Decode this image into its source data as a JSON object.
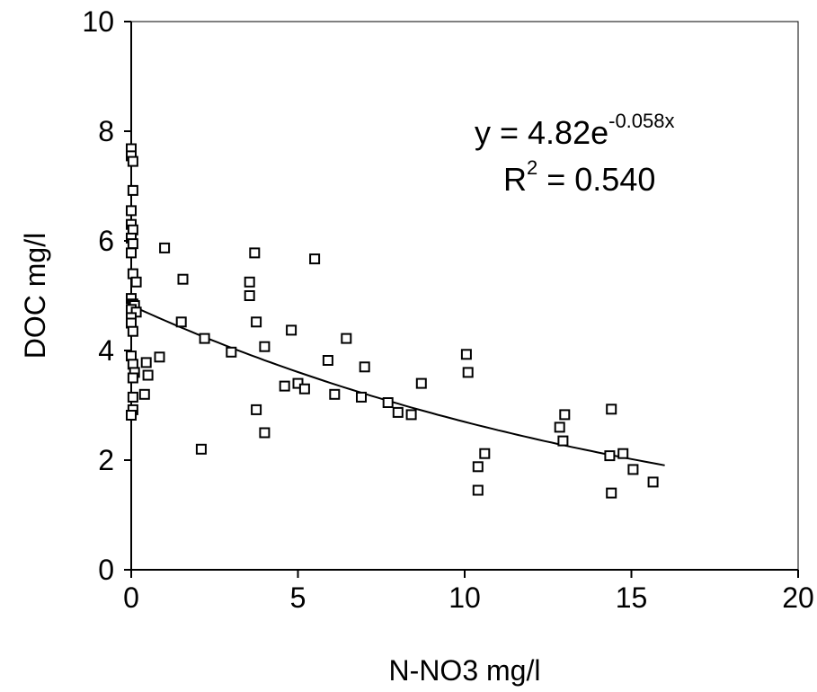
{
  "chart_data": {
    "type": "scatter",
    "xlabel": "N-NO3 mg/l",
    "ylabel": "DOC mg/l",
    "xlim": [
      0,
      20
    ],
    "ylim": [
      0,
      10
    ],
    "xticks": [
      "0",
      "5",
      "10",
      "15",
      "20"
    ],
    "yticks": [
      "0",
      "2",
      "4",
      "6",
      "8",
      "10"
    ],
    "grid": false,
    "legend": "none",
    "equation": {
      "prefix": "y = 4.82e",
      "exponent": "-0.058x",
      "r2_base": "R",
      "r2_sup": "2",
      "r2_value": " = 0.540"
    },
    "fit": {
      "a": 4.82,
      "b": -0.058,
      "x_start": 0,
      "x_end": 16
    },
    "points": [
      [
        0.0,
        7.68
      ],
      [
        0.0,
        7.55
      ],
      [
        0.05,
        7.45
      ],
      [
        0.05,
        6.92
      ],
      [
        0.0,
        6.55
      ],
      [
        0.0,
        6.3
      ],
      [
        0.05,
        6.2
      ],
      [
        0.0,
        6.05
      ],
      [
        0.05,
        5.95
      ],
      [
        0.0,
        5.78
      ],
      [
        0.05,
        5.4
      ],
      [
        0.15,
        5.25
      ],
      [
        0.0,
        4.95
      ],
      [
        0.05,
        4.85
      ],
      [
        0.1,
        4.82
      ],
      [
        0.0,
        4.75
      ],
      [
        0.15,
        4.7
      ],
      [
        0.0,
        4.6
      ],
      [
        0.0,
        4.5
      ],
      [
        0.05,
        4.35
      ],
      [
        0.0,
        3.9
      ],
      [
        0.05,
        3.75
      ],
      [
        0.1,
        3.6
      ],
      [
        0.05,
        3.5
      ],
      [
        0.05,
        3.15
      ],
      [
        0.05,
        2.92
      ],
      [
        0.0,
        2.82
      ],
      [
        0.45,
        3.78
      ],
      [
        0.5,
        3.55
      ],
      [
        0.4,
        3.2
      ],
      [
        0.85,
        3.88
      ],
      [
        1.0,
        5.87
      ],
      [
        1.5,
        4.52
      ],
      [
        1.55,
        5.3
      ],
      [
        2.1,
        2.2
      ],
      [
        2.2,
        4.22
      ],
      [
        3.0,
        3.97
      ],
      [
        3.55,
        5.25
      ],
      [
        3.55,
        5.0
      ],
      [
        3.7,
        5.78
      ],
      [
        3.75,
        4.52
      ],
      [
        3.75,
        2.92
      ],
      [
        4.0,
        4.07
      ],
      [
        4.0,
        2.5
      ],
      [
        4.6,
        3.35
      ],
      [
        4.8,
        4.37
      ],
      [
        5.0,
        3.4
      ],
      [
        5.2,
        3.3
      ],
      [
        5.5,
        5.67
      ],
      [
        5.9,
        3.82
      ],
      [
        6.1,
        3.2
      ],
      [
        6.45,
        4.22
      ],
      [
        6.9,
        3.15
      ],
      [
        7.0,
        3.7
      ],
      [
        7.7,
        3.05
      ],
      [
        8.0,
        2.87
      ],
      [
        8.4,
        2.83
      ],
      [
        8.7,
        3.4
      ],
      [
        10.05,
        3.93
      ],
      [
        10.1,
        3.6
      ],
      [
        10.4,
        1.88
      ],
      [
        10.4,
        1.45
      ],
      [
        10.6,
        2.12
      ],
      [
        12.85,
        2.6
      ],
      [
        12.95,
        2.35
      ],
      [
        13.0,
        2.83
      ],
      [
        14.35,
        2.08
      ],
      [
        14.4,
        2.93
      ],
      [
        14.4,
        1.4
      ],
      [
        14.75,
        2.12
      ],
      [
        15.05,
        1.83
      ],
      [
        15.65,
        1.6
      ]
    ]
  }
}
